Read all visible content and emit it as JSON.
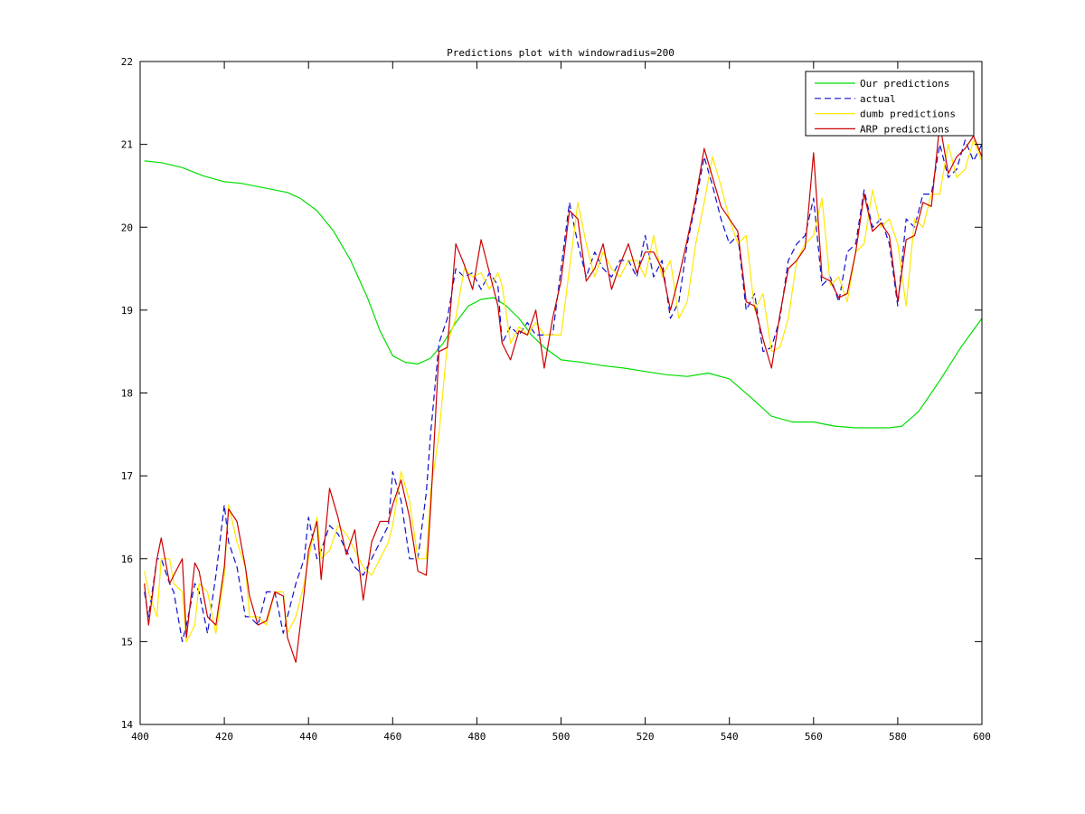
{
  "chart_data": {
    "type": "line",
    "title": "Predictions plot with windowradius=200",
    "xlim": [
      400,
      600
    ],
    "ylim": [
      14,
      22
    ],
    "xticks": [
      400,
      420,
      440,
      460,
      480,
      500,
      520,
      540,
      560,
      580,
      600
    ],
    "yticks": [
      14,
      15,
      16,
      17,
      18,
      19,
      20,
      21,
      22
    ],
    "grid": false,
    "legend_position": "top-right",
    "series": [
      {
        "name": "Our predictions",
        "color": "#00dd00",
        "style": "solid",
        "x": [
          401,
          405,
          410,
          415,
          420,
          424,
          430,
          435,
          438,
          442,
          446,
          450,
          454,
          457,
          460,
          463,
          466,
          469,
          472,
          475,
          478,
          481,
          484,
          487,
          490,
          493,
          496,
          500,
          505,
          510,
          515,
          520,
          525,
          530,
          535,
          540,
          545,
          550,
          555,
          560,
          565,
          570,
          575,
          578,
          581,
          585,
          590,
          595,
          600
        ],
        "y": [
          20.8,
          20.78,
          20.72,
          20.62,
          20.55,
          20.53,
          20.47,
          20.42,
          20.35,
          20.2,
          19.95,
          19.6,
          19.15,
          18.75,
          18.45,
          18.37,
          18.35,
          18.42,
          18.6,
          18.85,
          19.05,
          19.13,
          19.15,
          19.05,
          18.9,
          18.7,
          18.55,
          18.4,
          18.37,
          18.33,
          18.3,
          18.26,
          18.22,
          18.2,
          18.24,
          18.17,
          17.95,
          17.72,
          17.65,
          17.65,
          17.6,
          17.58,
          17.58,
          17.58,
          17.6,
          17.78,
          18.15,
          18.55,
          18.9
        ]
      },
      {
        "name": "actual",
        "color": "#1010cc",
        "style": "dashed",
        "x": [
          401,
          402,
          404,
          405,
          407,
          408,
          410,
          411,
          413,
          414,
          416,
          418,
          420,
          421,
          423,
          425,
          426,
          428,
          430,
          432,
          434,
          435,
          437,
          439,
          440,
          442,
          443,
          445,
          447,
          449,
          451,
          453,
          455,
          457,
          459,
          460,
          462,
          464,
          466,
          468,
          469,
          471,
          473,
          475,
          477,
          479,
          481,
          483,
          485,
          486,
          488,
          490,
          492,
          494,
          496,
          498,
          500,
          502,
          504,
          506,
          508,
          510,
          512,
          514,
          516,
          518,
          520,
          522,
          524,
          526,
          528,
          530,
          532,
          534,
          536,
          538,
          540,
          542,
          544,
          546,
          548,
          550,
          552,
          554,
          556,
          558,
          560,
          562,
          564,
          566,
          568,
          570,
          572,
          574,
          576,
          578,
          580,
          582,
          584,
          586,
          588,
          590,
          592,
          594,
          596,
          598,
          600
        ],
        "y": [
          15.6,
          15.3,
          16.0,
          16.0,
          15.7,
          15.6,
          15.0,
          15.2,
          15.7,
          15.6,
          15.1,
          15.8,
          16.65,
          16.2,
          15.9,
          15.3,
          15.3,
          15.2,
          15.6,
          15.6,
          15.1,
          15.3,
          15.7,
          16.0,
          16.5,
          16.0,
          16.1,
          16.4,
          16.3,
          16.1,
          15.9,
          15.8,
          16.0,
          16.2,
          16.4,
          17.05,
          16.7,
          16.0,
          16.0,
          16.8,
          17.5,
          18.6,
          18.9,
          19.5,
          19.4,
          19.45,
          19.25,
          19.45,
          19.3,
          18.6,
          18.8,
          18.7,
          18.85,
          18.7,
          18.7,
          18.7,
          19.5,
          20.3,
          19.8,
          19.4,
          19.7,
          19.5,
          19.4,
          19.6,
          19.6,
          19.4,
          19.9,
          19.4,
          19.6,
          18.9,
          19.1,
          19.8,
          20.3,
          20.85,
          20.5,
          20.1,
          19.8,
          19.9,
          19.0,
          19.2,
          18.5,
          18.55,
          18.9,
          19.6,
          19.8,
          19.9,
          20.35,
          19.3,
          19.4,
          19.1,
          19.7,
          19.8,
          20.45,
          20.0,
          20.1,
          19.8,
          19.05,
          20.1,
          20.0,
          20.4,
          20.4,
          21.0,
          20.6,
          20.7,
          21.05,
          20.8,
          21.0
        ]
      },
      {
        "name": "dumb predictions",
        "color": "#ffe800",
        "style": "solid",
        "x": [
          401,
          402,
          404,
          405,
          407,
          408,
          410,
          411,
          413,
          414,
          416,
          418,
          420,
          421,
          423,
          425,
          426,
          428,
          430,
          432,
          434,
          435,
          437,
          439,
          440,
          442,
          443,
          445,
          447,
          449,
          451,
          453,
          455,
          457,
          459,
          460,
          462,
          464,
          466,
          468,
          469,
          471,
          473,
          475,
          477,
          479,
          481,
          483,
          485,
          486,
          488,
          490,
          492,
          494,
          496,
          498,
          500,
          502,
          504,
          506,
          508,
          510,
          512,
          514,
          516,
          518,
          520,
          522,
          524,
          526,
          528,
          530,
          532,
          534,
          536,
          538,
          540,
          542,
          544,
          546,
          548,
          550,
          552,
          554,
          556,
          558,
          560,
          562,
          564,
          566,
          568,
          570,
          572,
          574,
          576,
          578,
          580,
          582,
          584,
          586,
          588,
          590,
          592,
          594,
          596,
          598,
          600
        ],
        "y": [
          15.85,
          15.6,
          15.3,
          16.0,
          16.0,
          15.7,
          15.6,
          15.0,
          15.2,
          15.7,
          15.6,
          15.1,
          15.8,
          16.65,
          16.2,
          15.9,
          15.3,
          15.3,
          15.2,
          15.6,
          15.6,
          15.1,
          15.3,
          15.7,
          16.0,
          16.5,
          16.0,
          16.1,
          16.4,
          16.3,
          16.1,
          15.9,
          15.8,
          16.0,
          16.2,
          16.4,
          17.05,
          16.7,
          16.0,
          16.0,
          16.8,
          17.5,
          18.6,
          18.9,
          19.5,
          19.4,
          19.45,
          19.25,
          19.45,
          19.3,
          18.6,
          18.8,
          18.7,
          18.85,
          18.7,
          18.7,
          18.7,
          19.5,
          20.3,
          19.8,
          19.4,
          19.7,
          19.5,
          19.4,
          19.6,
          19.6,
          19.4,
          19.9,
          19.4,
          19.6,
          18.9,
          19.1,
          19.8,
          20.3,
          20.85,
          20.5,
          20.1,
          19.8,
          19.9,
          19.0,
          19.2,
          18.5,
          18.55,
          18.9,
          19.6,
          19.8,
          19.9,
          20.35,
          19.3,
          19.4,
          19.1,
          19.7,
          19.8,
          20.45,
          20.0,
          20.1,
          19.8,
          19.05,
          20.1,
          20.0,
          20.4,
          20.4,
          21.0,
          20.6,
          20.7,
          21.05,
          20.8
        ]
      },
      {
        "name": "ARP predictions",
        "color": "#cc0000",
        "style": "solid",
        "x": [
          401,
          402,
          404,
          405,
          407,
          408,
          410,
          411,
          413,
          414,
          416,
          418,
          420,
          421,
          423,
          425,
          426,
          428,
          430,
          432,
          434,
          435,
          437,
          439,
          440,
          442,
          443,
          445,
          447,
          449,
          451,
          453,
          455,
          457,
          459,
          460,
          462,
          464,
          466,
          468,
          469,
          471,
          473,
          475,
          477,
          479,
          481,
          483,
          485,
          486,
          488,
          490,
          492,
          494,
          496,
          498,
          500,
          502,
          504,
          506,
          508,
          510,
          512,
          514,
          516,
          518,
          520,
          522,
          524,
          526,
          528,
          530,
          532,
          534,
          536,
          538,
          540,
          542,
          544,
          546,
          548,
          550,
          552,
          554,
          556,
          558,
          560,
          562,
          564,
          566,
          568,
          570,
          572,
          574,
          576,
          578,
          580,
          582,
          584,
          586,
          588,
          590,
          592,
          594,
          596,
          598,
          600
        ],
        "y": [
          15.7,
          15.2,
          16.0,
          16.25,
          15.7,
          15.8,
          16.0,
          15.05,
          15.95,
          15.85,
          15.3,
          15.2,
          15.9,
          16.6,
          16.45,
          15.9,
          15.55,
          15.2,
          15.25,
          15.6,
          15.55,
          15.05,
          14.75,
          15.6,
          16.1,
          16.45,
          15.75,
          16.85,
          16.5,
          16.05,
          16.35,
          15.5,
          16.2,
          16.45,
          16.45,
          16.65,
          16.95,
          16.5,
          15.85,
          15.8,
          16.6,
          18.5,
          18.55,
          19.8,
          19.55,
          19.25,
          19.85,
          19.45,
          19.05,
          18.6,
          18.4,
          18.75,
          18.7,
          19.0,
          18.3,
          18.9,
          19.35,
          20.2,
          20.1,
          19.35,
          19.5,
          19.8,
          19.25,
          19.55,
          19.8,
          19.45,
          19.7,
          19.7,
          19.5,
          19.0,
          19.4,
          19.85,
          20.35,
          20.95,
          20.6,
          20.25,
          20.1,
          19.95,
          19.1,
          19.05,
          18.65,
          18.3,
          18.95,
          19.5,
          19.6,
          19.75,
          20.9,
          19.4,
          19.35,
          19.15,
          19.2,
          19.7,
          20.4,
          19.95,
          20.05,
          19.9,
          19.1,
          19.85,
          19.9,
          20.3,
          20.25,
          21.25,
          20.65,
          20.85,
          20.95,
          21.1,
          20.85
        ]
      }
    ]
  }
}
